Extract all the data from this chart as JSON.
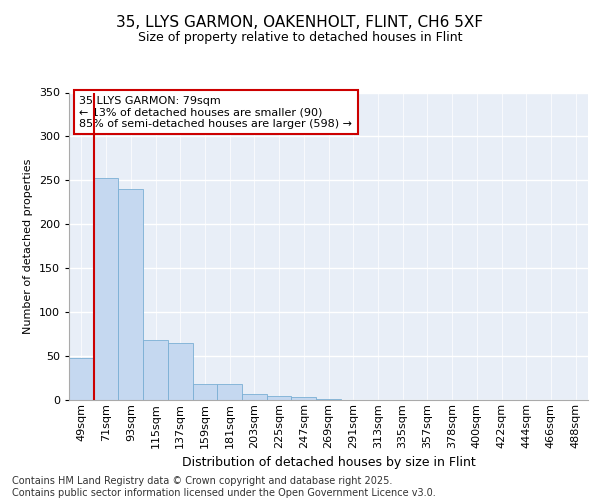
{
  "title1": "35, LLYS GARMON, OAKENHOLT, FLINT, CH6 5XF",
  "title2": "Size of property relative to detached houses in Flint",
  "xlabel": "Distribution of detached houses by size in Flint",
  "ylabel": "Number of detached properties",
  "categories": [
    "49sqm",
    "71sqm",
    "93sqm",
    "115sqm",
    "137sqm",
    "159sqm",
    "181sqm",
    "203sqm",
    "225sqm",
    "247sqm",
    "269sqm",
    "291sqm",
    "313sqm",
    "335sqm",
    "357sqm",
    "378sqm",
    "400sqm",
    "422sqm",
    "444sqm",
    "466sqm",
    "488sqm"
  ],
  "values": [
    48,
    253,
    240,
    68,
    65,
    18,
    18,
    7,
    4,
    3,
    1,
    0,
    0,
    0,
    0,
    0,
    0,
    0,
    0,
    0,
    0
  ],
  "bar_color": "#c5d8f0",
  "bar_edge_color": "#7aafd4",
  "property_line_x": 0.5,
  "property_line_color": "#cc0000",
  "annotation_text": "35 LLYS GARMON: 79sqm\n← 13% of detached houses are smaller (90)\n85% of semi-detached houses are larger (598) →",
  "annotation_box_color": "#ffffff",
  "annotation_box_edge_color": "#cc0000",
  "footnote": "Contains HM Land Registry data © Crown copyright and database right 2025.\nContains public sector information licensed under the Open Government Licence v3.0.",
  "ylim": [
    0,
    350
  ],
  "yticks": [
    0,
    50,
    100,
    150,
    200,
    250,
    300,
    350
  ],
  "bg_color": "#e8eef7",
  "fig_bg_color": "#ffffff",
  "title1_fontsize": 11,
  "title2_fontsize": 9,
  "xlabel_fontsize": 9,
  "ylabel_fontsize": 8,
  "tick_fontsize": 8,
  "annot_fontsize": 8,
  "footnote_fontsize": 7
}
